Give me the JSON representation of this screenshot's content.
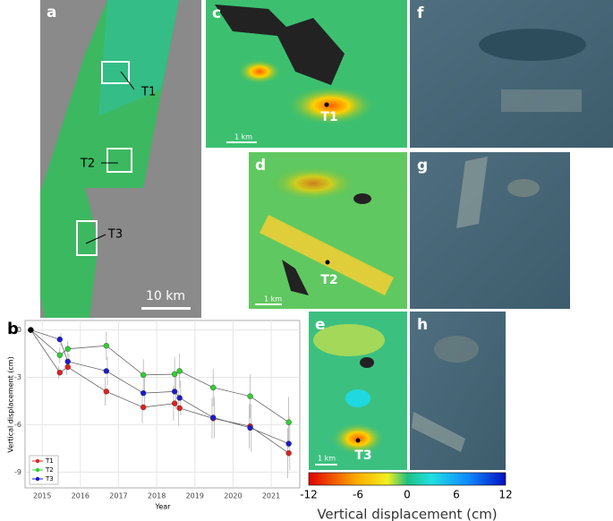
{
  "chart_data": {
    "type": "line",
    "panel": "b",
    "xlabel": "Year",
    "ylabel": "Vertical displacement (cm)",
    "x": [
      2014.7,
      2015.46,
      2015.67,
      2016.68,
      2017.65,
      2018.47,
      2018.6,
      2019.48,
      2020.45,
      2021.46
    ],
    "series": [
      {
        "name": "T1",
        "color": "#e02020",
        "values": [
          0,
          -2.7,
          -2.35,
          -3.9,
          -4.9,
          -4.65,
          -4.95,
          -5.6,
          -6.1,
          -7.8
        ],
        "errors": [
          0,
          0.4,
          0.5,
          0.9,
          1.0,
          1.1,
          1.1,
          1.3,
          1.4,
          1.6
        ]
      },
      {
        "name": "T2",
        "color": "#30d030",
        "values": [
          0,
          -1.6,
          -1.2,
          -1.0,
          -2.85,
          -2.8,
          -2.6,
          -3.65,
          -4.2,
          -5.85
        ],
        "errors": [
          0,
          0.5,
          0.5,
          0.9,
          1.0,
          1.1,
          1.1,
          1.2,
          1.4,
          1.6
        ]
      },
      {
        "name": "T3",
        "color": "#1a1ad0",
        "values": [
          0,
          -0.6,
          -2.0,
          -2.6,
          -4.0,
          -3.9,
          -4.3,
          -5.55,
          -6.2,
          -7.2
        ],
        "errors": [
          0,
          0.4,
          0.5,
          0.9,
          1.0,
          1.1,
          1.1,
          1.3,
          1.5,
          1.7
        ]
      }
    ],
    "xlim": [
      2014.55,
      2021.75
    ],
    "xticks": [
      2015,
      2016,
      2017,
      2018,
      2019,
      2020,
      2021
    ],
    "ylim": [
      -10,
      0.6
    ],
    "yticks": [
      0,
      -3,
      -6,
      -9
    ],
    "grid": true,
    "legend": "lower left"
  },
  "panels": {
    "a": {
      "letter": "a",
      "targets": [
        "T1",
        "T2",
        "T3"
      ],
      "scale": "10 km"
    },
    "c": {
      "letter": "c",
      "target": "T1",
      "scale": "1 km"
    },
    "d": {
      "letter": "d",
      "target": "T2",
      "scale": "1 km"
    },
    "e": {
      "letter": "e",
      "target": "T3",
      "scale": "1 km"
    },
    "f": {
      "letter": "f"
    },
    "g": {
      "letter": "g"
    },
    "h": {
      "letter": "h"
    }
  },
  "colorbar": {
    "ticks": [
      -12,
      -6,
      0,
      6,
      12
    ],
    "label": "Vertical displacement (cm)"
  }
}
